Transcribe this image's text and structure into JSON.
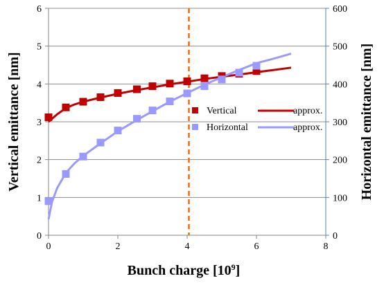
{
  "chart_data": {
    "type": "scatter",
    "xlabel": "Bunch charge [10",
    "xlabel_sup": "9",
    "xlabel_suffix": "]",
    "ylabel_left": "Vertical emittance [nm]",
    "ylabel_right": "Horizontal emittance [nm]",
    "xlim": [
      0,
      8
    ],
    "ylim_left": [
      0,
      6
    ],
    "ylim_right": [
      0,
      600
    ],
    "x_ticks": [
      "0",
      "2",
      "4",
      "6",
      "8"
    ],
    "y_left_ticks": [
      "0",
      "1",
      "2",
      "3",
      "4",
      "5",
      "6"
    ],
    "y_right_ticks": [
      "0",
      "100",
      "200",
      "300",
      "400",
      "500",
      "600"
    ],
    "grid": "horizontal",
    "legend": [
      {
        "label": "Vertical"
      },
      {
        "label": "approx."
      },
      {
        "label": "Horizontal"
      },
      {
        "label": "approx."
      }
    ],
    "series": [
      {
        "name": "Vertical",
        "axis": "left",
        "marker": "square",
        "color": "#c00000",
        "x": [
          0.0,
          0.5,
          1.0,
          1.5,
          2.0,
          2.55,
          3.0,
          3.5,
          4.0,
          4.5,
          5.0,
          5.5,
          6.0
        ],
        "y": [
          3.12,
          3.38,
          3.53,
          3.65,
          3.76,
          3.86,
          3.94,
          4.01,
          4.07,
          4.15,
          4.21,
          4.27,
          4.34
        ]
      },
      {
        "name": "approx.",
        "of": "Vertical",
        "axis": "left",
        "line": true,
        "color": "#c00000",
        "x": [
          0.0,
          0.25,
          0.5,
          0.75,
          1.0,
          1.5,
          2.0,
          2.5,
          3.0,
          3.5,
          4.0,
          4.5,
          5.0,
          5.5,
          6.0,
          6.5,
          7.0
        ],
        "y": [
          3.0,
          3.2,
          3.36,
          3.46,
          3.53,
          3.64,
          3.74,
          3.83,
          3.91,
          3.99,
          4.06,
          4.13,
          4.19,
          4.25,
          4.31,
          4.37,
          4.43
        ]
      },
      {
        "name": "Horizontal",
        "axis": "right",
        "marker": "square",
        "color": "#9999ff",
        "x": [
          0.0,
          0.5,
          1.0,
          1.5,
          2.0,
          2.55,
          3.0,
          3.5,
          4.0,
          4.5,
          5.0,
          5.5,
          6.0
        ],
        "y": [
          90,
          162,
          208,
          245,
          277,
          308,
          330,
          354,
          375,
          394,
          412,
          430,
          448
        ]
      },
      {
        "name": "approx.",
        "of": "Horizontal",
        "axis": "right",
        "line": true,
        "color": "#9999ff",
        "x": [
          0.0,
          0.1,
          0.25,
          0.5,
          0.75,
          1.0,
          1.5,
          2.0,
          2.5,
          3.0,
          3.5,
          4.0,
          4.5,
          5.0,
          5.5,
          6.0,
          6.5,
          7.0
        ],
        "y": [
          42,
          88,
          125,
          165,
          190,
          210,
          243,
          275,
          302,
          328,
          353,
          376,
          398,
          418,
          437,
          455,
          467,
          480
        ]
      }
    ],
    "annotations": [
      {
        "type": "vline",
        "x": 4.05,
        "style": "dashed",
        "color": "#ff6600"
      }
    ]
  }
}
